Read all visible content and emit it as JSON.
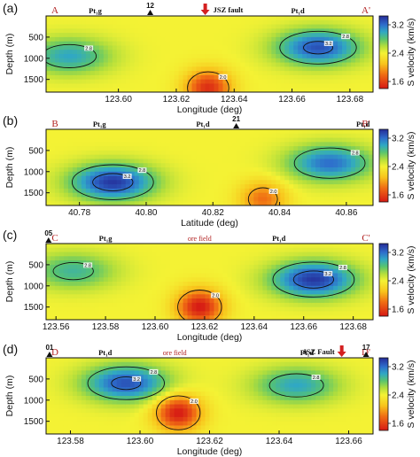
{
  "chart_data": [
    {
      "type": "heatmap",
      "panel": "(a)",
      "section_start": "A",
      "section_end": "A'",
      "xlabel": "Longitude (deg)",
      "ylabel": "Depth (m)",
      "xlim": [
        123.575,
        123.688
      ],
      "ylim": [
        0,
        1800
      ],
      "xticks": [
        "123.60",
        "123.62",
        "123.64",
        "123.66",
        "123.68"
      ],
      "yticks": [
        "500",
        "1000",
        "1500"
      ],
      "colorbar_label": "S velocity (km/s)",
      "colorbar_ticks": [
        "3.2",
        "2.4",
        "1.6"
      ],
      "annotations": [
        {
          "text": "Pt₁g",
          "x": 123.592
        },
        {
          "text": "12",
          "x": 123.611,
          "kind": "station"
        },
        {
          "text": "JSZ fault",
          "x": 123.63,
          "kind": "fault"
        },
        {
          "text": "Pt₁d",
          "x": 123.662
        }
      ],
      "contour_levels": [
        "3.2",
        "2.8",
        "2.4",
        "2.0"
      ],
      "features": [
        {
          "kind": "high",
          "x": 123.583,
          "depth": 950,
          "value": 3.0
        },
        {
          "kind": "high",
          "x": 123.669,
          "depth": 750,
          "value": 3.3
        },
        {
          "kind": "low",
          "x": 123.631,
          "depth": 1700,
          "value": 1.5
        }
      ]
    },
    {
      "type": "heatmap",
      "panel": "(b)",
      "section_start": "B",
      "section_end": "B'",
      "xlabel": "Latitude (deg)",
      "ylabel": "Depth (m)",
      "xlim": [
        40.77,
        40.868
      ],
      "ylim": [
        0,
        1800
      ],
      "xticks": [
        "40.78",
        "40.80",
        "40.82",
        "40.84",
        "40.86"
      ],
      "yticks": [
        "500",
        "1000",
        "1500"
      ],
      "colorbar_label": "S velocity (km/s)",
      "colorbar_ticks": [
        "3.2",
        "2.4",
        "1.6"
      ],
      "annotations": [
        {
          "text": "Pt₁g",
          "x": 40.786
        },
        {
          "text": "Pt₁d",
          "x": 40.817
        },
        {
          "text": "21",
          "x": 40.827,
          "kind": "station"
        },
        {
          "text": "Pt₁d",
          "x": 40.865
        }
      ],
      "contour_levels": [
        "3.2",
        "2.8",
        "2.4",
        "2.0"
      ],
      "features": [
        {
          "kind": "high",
          "x": 40.79,
          "depth": 1250,
          "value": 3.4
        },
        {
          "kind": "high",
          "x": 40.855,
          "depth": 800,
          "value": 3.2
        },
        {
          "kind": "low",
          "x": 40.835,
          "depth": 1650,
          "value": 1.8
        }
      ]
    },
    {
      "type": "heatmap",
      "panel": "(c)",
      "section_start": "C",
      "section_end": "C'",
      "xlabel": "Longitude (deg)",
      "ylabel": "Depth (m)",
      "xlim": [
        123.556,
        123.688
      ],
      "ylim": [
        0,
        1800
      ],
      "xticks": [
        "123.56",
        "123.58",
        "123.60",
        "123.62",
        "123.64",
        "123.66",
        "123.68"
      ],
      "yticks": [
        "500",
        "1000",
        "1500"
      ],
      "colorbar_label": "S velocity (km/s)",
      "colorbar_ticks": [
        "3.2",
        "2.4",
        "1.6"
      ],
      "annotations": [
        {
          "text": "05",
          "x": 123.557,
          "kind": "station"
        },
        {
          "text": "Pt₁g",
          "x": 123.58
        },
        {
          "text": "ore field",
          "x": 123.618
        },
        {
          "text": "Pt₁d",
          "x": 123.65
        }
      ],
      "contour_levels": [
        "3.2",
        "2.8",
        "2.4",
        "2.0"
      ],
      "features": [
        {
          "kind": "high",
          "x": 123.567,
          "depth": 650,
          "value": 2.9
        },
        {
          "kind": "high",
          "x": 123.664,
          "depth": 850,
          "value": 3.4
        },
        {
          "kind": "low",
          "x": 123.618,
          "depth": 1500,
          "value": 1.4
        }
      ]
    },
    {
      "type": "heatmap",
      "panel": "(d)",
      "section_start": "D",
      "section_end": "D'",
      "xlabel": "Longitude (deg)",
      "ylabel": "Depth (m)",
      "xlim": [
        123.573,
        123.667
      ],
      "ylim": [
        0,
        1800
      ],
      "xticks": [
        "123.58",
        "123.60",
        "123.62",
        "123.64",
        "123.66"
      ],
      "yticks": [
        "500",
        "1000",
        "1500"
      ],
      "colorbar_label": "S velocity (km/s)",
      "colorbar_ticks": [
        "3.2",
        "2.4",
        "1.6"
      ],
      "annotations": [
        {
          "text": "01",
          "x": 123.574,
          "kind": "station"
        },
        {
          "text": "Pt₁d",
          "x": 123.59
        },
        {
          "text": "ore field",
          "x": 123.61
        },
        {
          "text": "Pt₁d",
          "x": 123.648
        },
        {
          "text": "JSZ Fault",
          "x": 123.658,
          "kind": "fault"
        },
        {
          "text": "17",
          "x": 123.665,
          "kind": "station"
        }
      ],
      "contour_levels": [
        "3.2",
        "2.8",
        "2.4",
        "2.0"
      ],
      "features": [
        {
          "kind": "high",
          "x": 123.596,
          "depth": 600,
          "value": 3.3
        },
        {
          "kind": "high",
          "x": 123.645,
          "depth": 650,
          "value": 3.0
        },
        {
          "kind": "low",
          "x": 123.611,
          "depth": 1300,
          "value": 1.4
        }
      ]
    }
  ]
}
